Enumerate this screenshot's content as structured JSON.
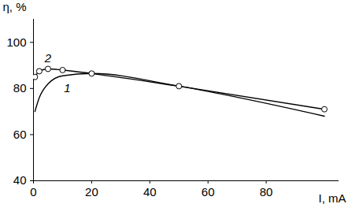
{
  "chart_data": {
    "type": "line",
    "x_label": "I, mA",
    "y_label": "η, %",
    "xlim": [
      0,
      105
    ],
    "ylim": [
      40,
      110
    ],
    "xticks": [
      0,
      20,
      40,
      60,
      80
    ],
    "yticks": [
      40,
      60,
      80,
      100
    ],
    "grid": false,
    "series": [
      {
        "name": "1",
        "color": "#000000",
        "marker": "none",
        "line_style": "solid",
        "x": [
          0.5,
          2,
          5,
          10,
          20,
          50,
          100
        ],
        "values": [
          70,
          76,
          82,
          85.5,
          86.5,
          81,
          68
        ]
      },
      {
        "name": "2",
        "color": "#000000",
        "marker": "circle",
        "line_style": "solid",
        "x": [
          0.5,
          2,
          5,
          10,
          20,
          50,
          100
        ],
        "values": [
          85,
          87.5,
          88.5,
          88,
          86.5,
          81,
          71
        ]
      }
    ]
  }
}
